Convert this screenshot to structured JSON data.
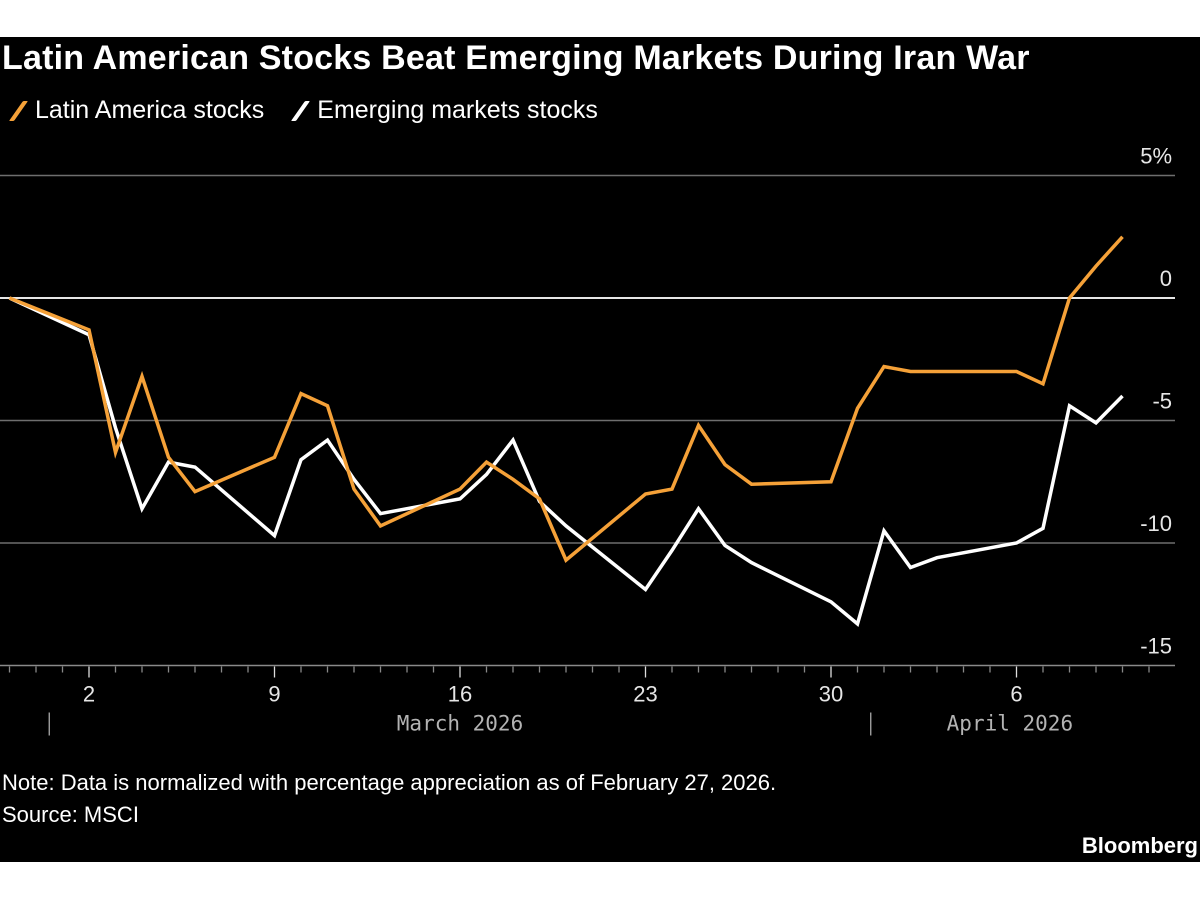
{
  "chart_data": {
    "type": "line",
    "title": "Latin American Stocks Beat Emerging Markets During Iran War",
    "xlabel": "",
    "ylabel": "",
    "y_unit": "%",
    "ylim": [
      -15,
      5
    ],
    "yticks": [
      5,
      0,
      -5,
      -10,
      -15
    ],
    "ytick_labels": [
      "5%",
      "0",
      "-5",
      "-10",
      "-15"
    ],
    "x_range": [
      "2026-02-27",
      "2026-04-10"
    ],
    "xtick_labels": [
      {
        "date": "2026-03-02",
        "label": "2"
      },
      {
        "date": "2026-03-09",
        "label": "9"
      },
      {
        "date": "2026-03-16",
        "label": "16"
      },
      {
        "date": "2026-03-23",
        "label": "23"
      },
      {
        "date": "2026-03-30",
        "label": "30"
      },
      {
        "date": "2026-04-06",
        "label": "6"
      }
    ],
    "month_labels": [
      {
        "start": "2026-03-01",
        "label": "March 2026"
      },
      {
        "start": "2026-04-01",
        "label": "April 2026"
      }
    ],
    "grid": true,
    "legend_position": "top-left",
    "x": [
      "2026-02-27",
      "2026-03-02",
      "2026-03-03",
      "2026-03-04",
      "2026-03-05",
      "2026-03-06",
      "2026-03-09",
      "2026-03-10",
      "2026-03-11",
      "2026-03-12",
      "2026-03-13",
      "2026-03-16",
      "2026-03-17",
      "2026-03-18",
      "2026-03-19",
      "2026-03-20",
      "2026-03-23",
      "2026-03-24",
      "2026-03-25",
      "2026-03-26",
      "2026-03-27",
      "2026-03-30",
      "2026-03-31",
      "2026-04-01",
      "2026-04-02",
      "2026-04-03",
      "2026-04-06",
      "2026-04-07",
      "2026-04-08",
      "2026-04-09",
      "2026-04-10"
    ],
    "series": [
      {
        "name": "Latin America stocks",
        "color": "#f5a138",
        "values": [
          0,
          -1.3,
          -6.3,
          -3.2,
          -6.5,
          -7.9,
          -6.5,
          -3.9,
          -4.4,
          -7.8,
          -9.3,
          -7.8,
          -6.7,
          -7.4,
          -8.2,
          -10.7,
          -8.0,
          -7.8,
          -5.2,
          -6.8,
          -7.6,
          -7.5,
          -4.5,
          -2.8,
          -3.0,
          -3.0,
          -3.0,
          -3.5,
          0.0,
          1.3,
          2.5
        ]
      },
      {
        "name": "Emerging markets stocks",
        "color": "#ffffff",
        "values": [
          0,
          -1.5,
          -5.3,
          -8.6,
          -6.7,
          -6.9,
          -9.7,
          -6.6,
          -5.8,
          -7.4,
          -8.8,
          -8.2,
          -7.2,
          -5.8,
          -8.3,
          -9.3,
          -11.9,
          -10.3,
          -8.6,
          -10.1,
          -10.8,
          -12.4,
          -13.3,
          -9.5,
          -11.0,
          -10.6,
          -10.0,
          -9.4,
          -4.4,
          -5.1,
          -4.0
        ]
      }
    ]
  },
  "footer": {
    "note": "Note: Data is normalized with percentage appreciation as of February 27, 2026.",
    "source": "Source: MSCI",
    "brand": "Bloomberg"
  }
}
